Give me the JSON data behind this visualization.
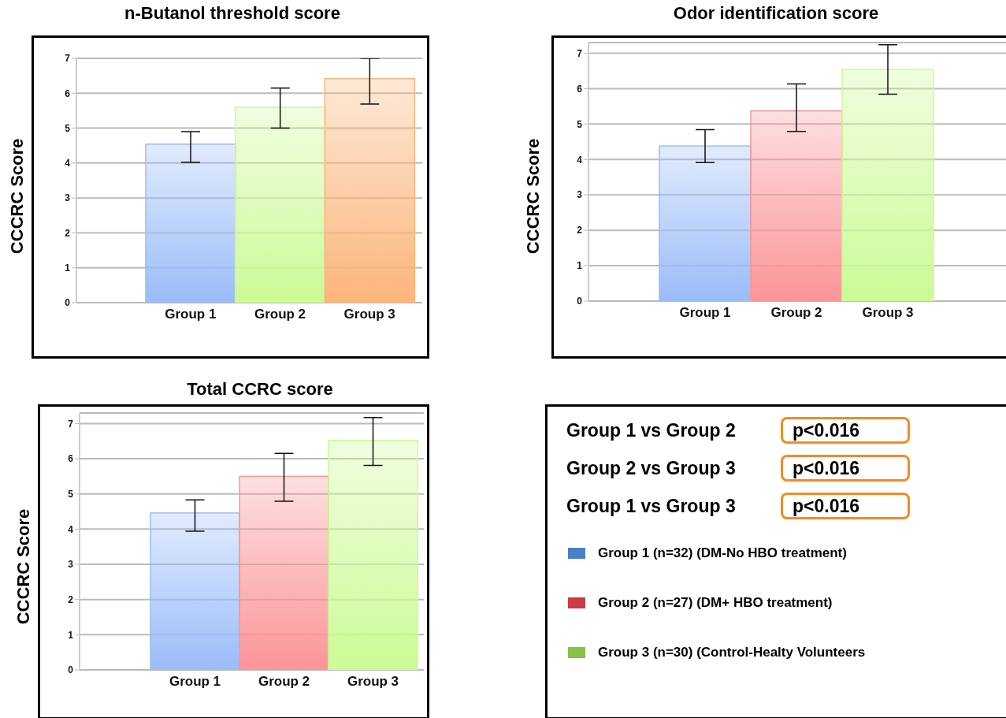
{
  "chart_data": [
    {
      "type": "bar",
      "title": "n-Butanol threshold score",
      "ylabel": "CCCRC Score",
      "categories": [
        "Group 1",
        "Group 2",
        "Group 3"
      ],
      "values": [
        4.54,
        5.6,
        6.42
      ],
      "colors": [
        "#9bbcf8",
        "#ccfa96",
        "#fbb57a"
      ],
      "errors": [
        [
          4.02,
          4.9
        ],
        [
          5.0,
          6.15
        ],
        [
          5.69,
          7.0
        ]
      ],
      "ylim": [
        0,
        7
      ],
      "yticks": [
        0,
        1,
        2,
        3,
        4,
        5,
        6,
        7
      ],
      "grid": "y"
    },
    {
      "type": "bar",
      "title": "Odor identification score",
      "ylabel": "CCCRC Score",
      "categories": [
        "Group 1",
        "Group 2",
        "Group 3"
      ],
      "values": [
        4.38,
        5.37,
        6.54
      ],
      "colors": [
        "#9bbcf8",
        "#fb9598",
        "#ccfa96"
      ],
      "errors": [
        [
          3.91,
          4.84
        ],
        [
          4.79,
          6.13
        ],
        [
          5.84,
          7.24
        ]
      ],
      "ylim": [
        0,
        7.3
      ],
      "yticks": [
        0,
        1,
        2,
        3,
        4,
        5,
        6,
        7
      ],
      "grid": "y"
    },
    {
      "type": "bar",
      "title": "Total CCRC score",
      "ylabel": "CCCRC Score",
      "categories": [
        "Group 1",
        "Group 2",
        "Group 3"
      ],
      "values": [
        4.46,
        5.5,
        6.52
      ],
      "colors": [
        "#9bbcf8",
        "#fb9598",
        "#ccfa96"
      ],
      "errors": [
        [
          3.94,
          4.83
        ],
        [
          4.79,
          6.15
        ],
        [
          5.81,
          7.17
        ]
      ],
      "ylim": [
        0,
        7.3
      ],
      "yticks": [
        0,
        1,
        2,
        3,
        4,
        5,
        6,
        7
      ],
      "grid": "y"
    },
    {
      "type": "other",
      "annotations": [
        "Group 1 vs Group 2",
        "p<0.016",
        "Group 2 vs Group 3",
        "p<0.016",
        "Group 1 vs Group 3",
        "p<0.016"
      ],
      "categories": [
        "Group 1 (n=32) (DM-No HBO treatment)",
        "Group 2 (n=27) (DM+ HBO treatment)",
        "Group 3 (n=30) (Control-Healty Volunteers"
      ],
      "colors": [
        "#4a7fc8",
        "#cc3a44",
        "#88c048"
      ]
    }
  ]
}
